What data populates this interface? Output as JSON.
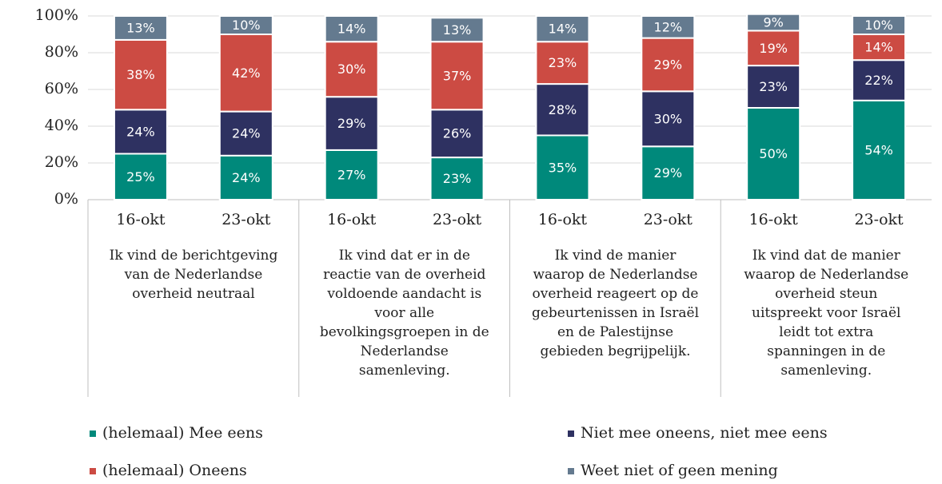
{
  "chart_data": {
    "type": "stacked_bar",
    "categories": [
      "16-okt",
      "23-okt",
      "16-okt",
      "23-okt",
      "16-okt",
      "23-okt",
      "16-okt",
      "23-okt"
    ],
    "groups": [
      "Ik vind de berichtgeving\nvan de Nederlandse\noverheid neutraal",
      "Ik vind dat er in de\nreactie van de overheid\nvoldoende aandacht is\nvoor alle\nbevolkingsgroepen in de\nNederlandse\nsamenleving.",
      "Ik vind de manier\nwaarop de Nederlandse\noverheid reageert op de\ngebeurtenissen in Israël\nen de Palestijnse\ngebieden begrijpelijk.",
      "Ik vind dat de manier\nwaarop de Nederlandse\noverheid steun\nuitspreekt voor Israël\nleidt tot extra\nspanningen in de\nsamenleving."
    ],
    "series": [
      {
        "name": "(helemaal) Mee eens",
        "color": "#00897b",
        "values": [
          25,
          24,
          27,
          23,
          35,
          29,
          50,
          54
        ],
        "value_labels": [
          "25%",
          "24%",
          "27%",
          "23%",
          "35%",
          "29%",
          "50%",
          "54%"
        ]
      },
      {
        "name": "Niet mee oneens, niet mee eens",
        "color": "#2e3161",
        "values": [
          24,
          24,
          29,
          26,
          28,
          30,
          23,
          22
        ],
        "value_labels": [
          "24%",
          "24%",
          "29%",
          "26%",
          "28%",
          "30%",
          "23%",
          "22%"
        ]
      },
      {
        "name": "(helemaal) Oneens",
        "color": "#cc4b43",
        "values": [
          38,
          42,
          30,
          37,
          23,
          29,
          19,
          14
        ],
        "value_labels": [
          "38%",
          "42%",
          "30%",
          "37%",
          "23%",
          "29%",
          "19%",
          "14%"
        ]
      },
      {
        "name": "Weet niet of geen mening",
        "color": "#647a8f",
        "values": [
          13,
          10,
          14,
          13,
          14,
          12,
          9,
          10
        ],
        "value_labels": [
          "13%",
          "10%",
          "14%",
          "13%",
          "14%",
          "12%",
          "9%",
          "10%"
        ]
      }
    ],
    "ylim": [
      0,
      100
    ],
    "yticks": [
      {
        "value": 0,
        "label": "0%"
      },
      {
        "value": 20,
        "label": "20%"
      },
      {
        "value": 40,
        "label": "40%"
      },
      {
        "value": 60,
        "label": "60%"
      },
      {
        "value": 80,
        "label": "80%"
      },
      {
        "value": 100,
        "label": "100%"
      }
    ],
    "grid": true,
    "legend": "bottom"
  }
}
